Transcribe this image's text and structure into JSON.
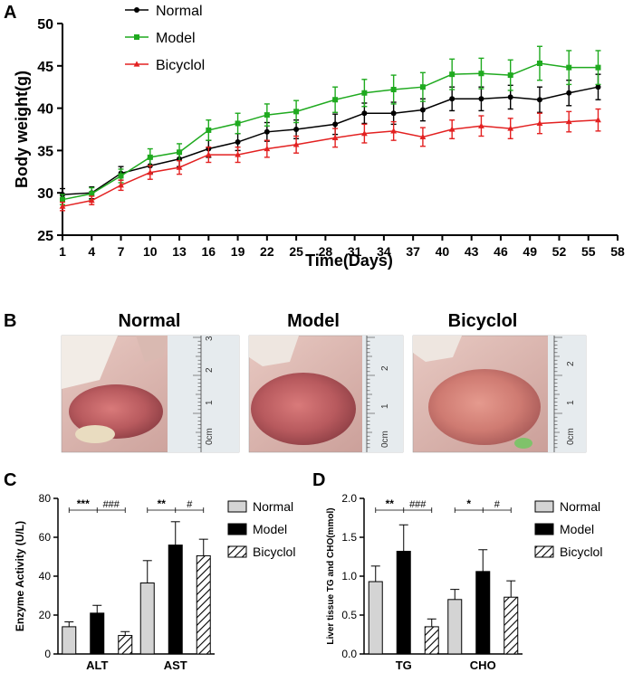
{
  "panels": {
    "A": "A",
    "B": "B",
    "C": "C",
    "D": "D"
  },
  "chart_data": [
    {
      "id": "A",
      "type": "line",
      "xlabel": "Time(Days)",
      "ylabel": "Body weight(g)",
      "xlim": [
        1,
        58
      ],
      "xticks": [
        1,
        4,
        7,
        10,
        13,
        16,
        19,
        22,
        25,
        28,
        31,
        34,
        37,
        40,
        43,
        46,
        49,
        52,
        55,
        58
      ],
      "ylim": [
        25,
        50
      ],
      "yticks": [
        25,
        30,
        35,
        40,
        45,
        50
      ],
      "x": [
        1,
        4,
        7,
        10,
        13,
        16,
        19,
        22,
        25,
        29,
        32,
        35,
        38,
        41,
        44,
        47,
        50,
        53,
        56
      ],
      "series": [
        {
          "name": "Normal",
          "color": "#000000",
          "marker": "circle",
          "values": [
            29.8,
            30.0,
            32.3,
            33.2,
            34.0,
            35.2,
            36.0,
            37.2,
            37.5,
            38.1,
            39.4,
            39.4,
            39.8,
            41.1,
            41.1,
            41.3,
            41.0,
            41.8,
            42.5
          ],
          "errors": [
            0.7,
            0.7,
            0.8,
            0.9,
            0.9,
            1.0,
            1.0,
            1.1,
            1.1,
            1.2,
            1.2,
            1.3,
            1.3,
            1.4,
            1.4,
            1.4,
            1.5,
            1.5,
            1.5
          ]
        },
        {
          "name": "Model",
          "color": "#1faa1f",
          "marker": "square",
          "values": [
            29.2,
            29.9,
            32.0,
            34.2,
            34.8,
            37.4,
            38.2,
            39.2,
            39.6,
            41.0,
            41.8,
            42.2,
            42.5,
            44.0,
            44.1,
            43.9,
            45.3,
            44.8,
            44.8
          ],
          "errors": [
            0.6,
            0.7,
            0.8,
            1.0,
            1.0,
            1.2,
            1.2,
            1.3,
            1.3,
            1.5,
            1.6,
            1.7,
            1.7,
            1.8,
            1.8,
            1.8,
            2.0,
            2.0,
            2.0
          ]
        },
        {
          "name": "Bicyclol",
          "color": "#e32121",
          "marker": "triangle",
          "values": [
            28.4,
            29.1,
            30.9,
            32.4,
            33.0,
            34.5,
            34.5,
            35.2,
            35.7,
            36.5,
            37.0,
            37.3,
            36.6,
            37.5,
            37.9,
            37.6,
            38.2,
            38.4,
            38.6
          ],
          "errors": [
            0.5,
            0.5,
            0.6,
            0.8,
            0.8,
            0.9,
            0.9,
            1.0,
            1.0,
            1.1,
            1.1,
            1.1,
            1.1,
            1.1,
            1.2,
            1.2,
            1.2,
            1.2,
            1.3
          ]
        }
      ]
    },
    {
      "id": "C",
      "type": "bar",
      "ylabel": "Enzyme Activity (U/L)",
      "ylim": [
        0,
        80
      ],
      "yticks": [
        0,
        20,
        40,
        60,
        80
      ],
      "categories": [
        "ALT",
        "AST"
      ],
      "series": [
        {
          "name": "Normal",
          "pattern": "gray",
          "values": [
            14,
            36.5
          ],
          "errors": [
            2.5,
            11.5
          ]
        },
        {
          "name": "Model",
          "pattern": "black",
          "values": [
            21,
            56
          ],
          "errors": [
            4,
            12
          ]
        },
        {
          "name": "Bicyclol",
          "pattern": "hatch",
          "values": [
            9.5,
            50.5
          ],
          "errors": [
            2,
            8.5
          ]
        }
      ],
      "significance": [
        {
          "category": 0,
          "left": "***",
          "right": "###"
        },
        {
          "category": 1,
          "left": "**",
          "right": "#"
        }
      ]
    },
    {
      "id": "D",
      "type": "bar",
      "ylabel": "Liver tissue TG and CHO(mmol)",
      "ylim": [
        0,
        2.0
      ],
      "yticks": [
        0.0,
        0.5,
        1.0,
        1.5,
        2.0
      ],
      "categories": [
        "TG",
        "CHO"
      ],
      "series": [
        {
          "name": "Normal",
          "pattern": "gray",
          "values": [
            0.93,
            0.7
          ],
          "errors": [
            0.2,
            0.13
          ]
        },
        {
          "name": "Model",
          "pattern": "black",
          "values": [
            1.32,
            1.06
          ],
          "errors": [
            0.34,
            0.28
          ]
        },
        {
          "name": "Bicyclol",
          "pattern": "hatch",
          "values": [
            0.35,
            0.73
          ],
          "errors": [
            0.1,
            0.21
          ]
        }
      ],
      "significance": [
        {
          "category": 0,
          "left": "**",
          "right": "###"
        },
        {
          "category": 1,
          "left": "*",
          "right": "#"
        }
      ]
    }
  ],
  "photos": {
    "titles": [
      "Normal",
      "Model",
      "Bicyclol"
    ],
    "ruler_labels": [
      [
        "3",
        "2",
        "1",
        "0cm"
      ],
      [
        "2",
        "1",
        "0cm"
      ],
      [
        "2",
        "1",
        "0cm"
      ]
    ]
  }
}
